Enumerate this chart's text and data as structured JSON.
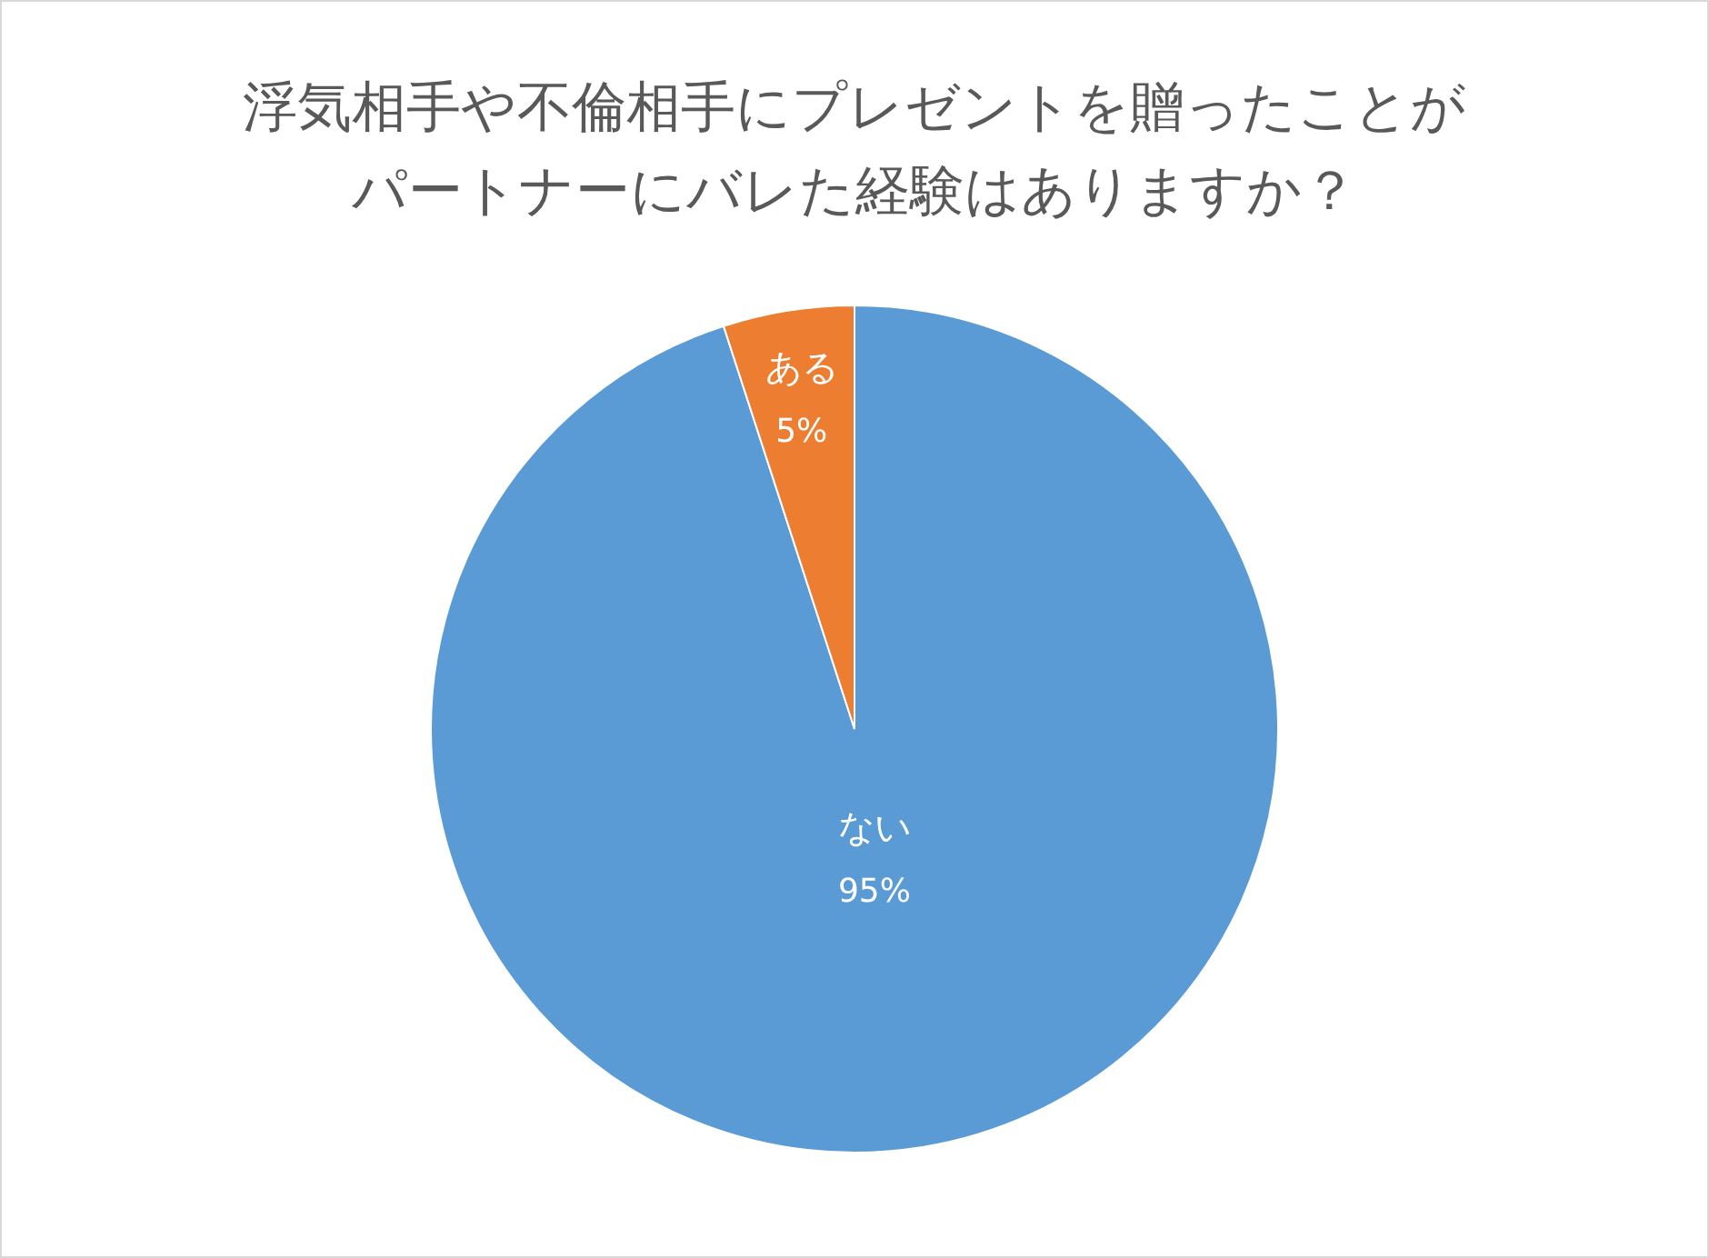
{
  "chart_data": {
    "type": "pie",
    "title": "浮気相手や不倫相手にプレゼントを贈ったことがパートナーにバレた経験はありますか？",
    "categories": [
      "ない",
      "ある"
    ],
    "values": [
      95,
      5
    ],
    "colors": [
      "#5b9bd5",
      "#ed7d31"
    ],
    "value_labels": [
      "95%",
      "5%"
    ],
    "legend": false
  }
}
